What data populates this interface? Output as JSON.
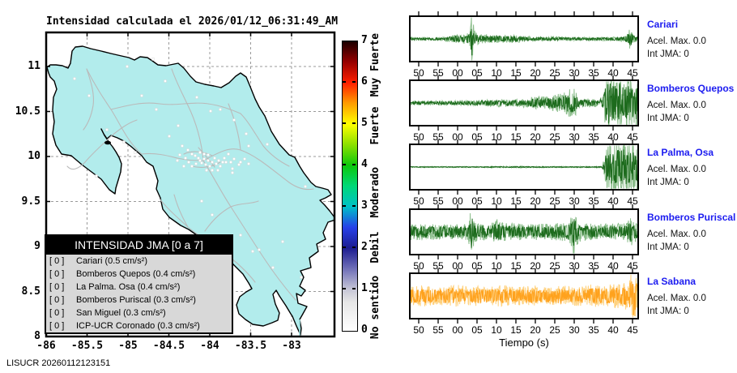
{
  "title": "Intensidad calculada el 2026/01/12_06:31:49_AM",
  "footer": "LISUCR 20260112123151",
  "map": {
    "x_ticks": [
      "-86",
      "-85.5",
      "-85",
      "-84.5",
      "-84",
      "-83.5",
      "-83"
    ],
    "y_ticks": [
      "8",
      "8.5",
      "9",
      "9.5",
      "10",
      "10.5",
      "11"
    ],
    "land_color": "#b2ecec",
    "road_color": "#bababa",
    "station_marker_color": "#ffffff",
    "grid_color": "#999999",
    "legend": {
      "header": "INTENSIDAD JMA [0 a 7]",
      "rows": [
        {
          "bracket": "[ 0 ]",
          "label": "Cariari (0.5 cm/s²)"
        },
        {
          "bracket": "[ 0 ]",
          "label": "Bomberos Quepos (0.4 cm/s²)"
        },
        {
          "bracket": "[ 0 ]",
          "label": "La Palma. Osa (0.4 cm/s²)"
        },
        {
          "bracket": "[ 0 ]",
          "label": "Bomberos Puriscal (0.3 cm/s²)"
        },
        {
          "bracket": "[ 0 ]",
          "label": "San Miguel (0.3 cm/s²)"
        },
        {
          "bracket": "[ 0 ]",
          "label": "ICP-UCR Coronado (0.3 cm/s²)"
        }
      ]
    }
  },
  "colorbar": {
    "ticks": [
      "0",
      "1",
      "2",
      "3",
      "4",
      "5",
      "6",
      "7"
    ],
    "categories": [
      {
        "label": "No sentido",
        "value": 0.55
      },
      {
        "label": "Debil",
        "value": 2.0
      },
      {
        "label": "Moderado",
        "value": 3.33
      },
      {
        "label": "Fuerte",
        "value": 4.94
      },
      {
        "label": "Muy Fuerte",
        "value": 6.41
      }
    ],
    "gradient": [
      {
        "v": 0,
        "c": "#ffffff"
      },
      {
        "v": 0.7,
        "c": "#e6e6e6"
      },
      {
        "v": 1,
        "c": "#c6c6d6"
      },
      {
        "v": 1.5,
        "c": "#7070b8"
      },
      {
        "v": 2,
        "c": "#1c1c90"
      },
      {
        "v": 2.5,
        "c": "#2740e8"
      },
      {
        "v": 3,
        "c": "#00c0c8"
      },
      {
        "v": 3.5,
        "c": "#00d878"
      },
      {
        "v": 4,
        "c": "#0cc80c"
      },
      {
        "v": 4.5,
        "c": "#8ce000"
      },
      {
        "v": 5,
        "c": "#ffff00"
      },
      {
        "v": 5.5,
        "c": "#ff9c00"
      },
      {
        "v": 6,
        "c": "#ff1e00"
      },
      {
        "v": 6.5,
        "c": "#960000"
      },
      {
        "v": 7,
        "c": "#1a0000"
      }
    ]
  },
  "seismograms": {
    "x_tick_labels": [
      "50",
      "55",
      "00",
      "05",
      "10",
      "15",
      "20",
      "25",
      "30",
      "35",
      "40",
      "45"
    ],
    "xlabel": "Tiempo (s)",
    "station_label_color": "#1c1cf0"
  },
  "chart_data": [
    {
      "type": "heatmap",
      "subtype": "intensity-map",
      "title": "Intensidad calculada el 2026/01/12_06:31:49_AM",
      "region": "Costa Rica",
      "xlabel": "",
      "ylabel": "",
      "x_ticks": [
        -86,
        -85.5,
        -85,
        -84.5,
        -84,
        -83.5,
        -83
      ],
      "y_ticks": [
        8,
        8.5,
        9,
        9.5,
        10,
        10.5,
        11
      ],
      "xlim": [
        -86,
        -82.47
      ],
      "ylim": [
        8,
        11.38
      ],
      "grid": true,
      "legend_title": "INTENSIDAD JMA [0 a 7]",
      "stations_intensity": [
        {
          "station": "Cariari",
          "jma_intensity": 0,
          "acel_max_cm_s2": 0.5
        },
        {
          "station": "Bomberos Quepos",
          "jma_intensity": 0,
          "acel_max_cm_s2": 0.4
        },
        {
          "station": "La Palma. Osa",
          "jma_intensity": 0,
          "acel_max_cm_s2": 0.4
        },
        {
          "station": "Bomberos Puriscal",
          "jma_intensity": 0,
          "acel_max_cm_s2": 0.3
        },
        {
          "station": "San Miguel",
          "jma_intensity": 0,
          "acel_max_cm_s2": 0.3
        },
        {
          "station": "ICP-UCR Coronado",
          "jma_intensity": 0,
          "acel_max_cm_s2": 0.3
        }
      ],
      "colorbar": {
        "range": [
          0,
          7
        ],
        "ticks": [
          0,
          1,
          2,
          3,
          4,
          5,
          6,
          7
        ],
        "labels": [
          "No sentido",
          "Debil",
          "Moderado",
          "Fuerte",
          "Muy Fuerte"
        ]
      }
    },
    {
      "type": "line",
      "subtype": "seismogram-waveforms",
      "xlabel": "Tiempo (s)",
      "x_tick_labels": [
        "50",
        "55",
        "00",
        "05",
        "10",
        "15",
        "20",
        "25",
        "30",
        "35",
        "40",
        "45"
      ],
      "series": [
        {
          "name": "Cariari",
          "acel_text": "Acel. Max. 0.0",
          "int_text": "Int JMA: 0",
          "acel_max": 0.0,
          "int_jma": 0,
          "color": "#1d6b1d",
          "color_light": "#8abd8a",
          "envelope": [
            [
              0,
              0.05
            ],
            [
              0.14,
              0.05
            ],
            [
              0.18,
              0.12
            ],
            [
              0.22,
              0.14
            ],
            [
              0.25,
              0.18
            ],
            [
              0.263,
              0.25
            ],
            [
              0.269,
              1.0
            ],
            [
              0.275,
              0.6
            ],
            [
              0.285,
              0.22
            ],
            [
              0.31,
              0.15
            ],
            [
              0.35,
              0.13
            ],
            [
              0.38,
              0.15
            ],
            [
              0.41,
              0.12
            ],
            [
              0.45,
              0.14
            ],
            [
              0.5,
              0.09
            ],
            [
              0.55,
              0.07
            ],
            [
              0.62,
              0.08
            ],
            [
              0.7,
              0.06
            ],
            [
              0.8,
              0.06
            ],
            [
              0.9,
              0.07
            ],
            [
              0.945,
              0.08
            ],
            [
              0.965,
              0.32
            ],
            [
              0.975,
              0.28
            ],
            [
              0.99,
              0.1
            ],
            [
              1,
              0.08
            ]
          ]
        },
        {
          "name": "Bomberos Quepos",
          "acel_text": "Acel. Max. 0.0",
          "int_text": "Int JMA: 0",
          "acel_max": 0.0,
          "int_jma": 0,
          "color": "#1d6b1d",
          "color_light": "#8abd8a",
          "envelope": [
            [
              0,
              0.06
            ],
            [
              0.1,
              0.07
            ],
            [
              0.2,
              0.08
            ],
            [
              0.3,
              0.1
            ],
            [
              0.38,
              0.13
            ],
            [
              0.45,
              0.12
            ],
            [
              0.5,
              0.15
            ],
            [
              0.55,
              0.2
            ],
            [
              0.6,
              0.22
            ],
            [
              0.64,
              0.28
            ],
            [
              0.68,
              0.35
            ],
            [
              0.71,
              0.55
            ],
            [
              0.725,
              0.45
            ],
            [
              0.74,
              0.2
            ],
            [
              0.77,
              0.16
            ],
            [
              0.8,
              0.14
            ],
            [
              0.83,
              0.12
            ],
            [
              0.85,
              0.3
            ],
            [
              0.862,
              0.95
            ],
            [
              0.88,
              1.0
            ],
            [
              0.9,
              0.8
            ],
            [
              0.92,
              0.95
            ],
            [
              0.94,
              0.75
            ],
            [
              0.96,
              0.9
            ],
            [
              0.98,
              0.7
            ],
            [
              1,
              0.8
            ]
          ]
        },
        {
          "name": "La Palma, Osa",
          "acel_text": "Acel. Max. 0.0",
          "int_text": "Int JMA: 0",
          "acel_max": 0.0,
          "int_jma": 0,
          "color": "#1d6b1d",
          "color_light": "#8abd8a",
          "envelope": [
            [
              0,
              0.018
            ],
            [
              0.3,
              0.018
            ],
            [
              0.45,
              0.025
            ],
            [
              0.6,
              0.02
            ],
            [
              0.8,
              0.02
            ],
            [
              0.845,
              0.03
            ],
            [
              0.862,
              0.6
            ],
            [
              0.875,
              1.0
            ],
            [
              0.89,
              0.75
            ],
            [
              0.91,
              0.9
            ],
            [
              0.93,
              0.8
            ],
            [
              0.95,
              0.95
            ],
            [
              0.97,
              0.7
            ],
            [
              1,
              0.85
            ]
          ]
        },
        {
          "name": "Bomberos Puriscal",
          "acel_text": "Acel. Max. 0.0",
          "int_text": "Int JMA: 0",
          "acel_max": 0.0,
          "int_jma": 0,
          "color": "#1d6b1d",
          "color_light": "#8abd8a",
          "envelope": [
            [
              0,
              0.28
            ],
            [
              0.1,
              0.26
            ],
            [
              0.2,
              0.25
            ],
            [
              0.255,
              0.3
            ],
            [
              0.268,
              0.85
            ],
            [
              0.28,
              0.4
            ],
            [
              0.3,
              0.28
            ],
            [
              0.36,
              0.3
            ],
            [
              0.385,
              0.5
            ],
            [
              0.4,
              0.3
            ],
            [
              0.5,
              0.26
            ],
            [
              0.6,
              0.27
            ],
            [
              0.68,
              0.3
            ],
            [
              0.712,
              0.5
            ],
            [
              0.72,
              1.0
            ],
            [
              0.728,
              0.5
            ],
            [
              0.75,
              0.3
            ],
            [
              0.8,
              0.27
            ],
            [
              0.85,
              0.26
            ],
            [
              0.9,
              0.28
            ],
            [
              0.95,
              0.3
            ],
            [
              0.97,
              0.5
            ],
            [
              0.985,
              0.35
            ],
            [
              1,
              0.3
            ]
          ]
        },
        {
          "name": "La Sabana",
          "acel_text": "Acel. Max. 0.0",
          "int_text": "Int JMA: 0",
          "acel_max": 0.0,
          "int_jma": 0,
          "color": "#ffa21e",
          "color_light": "#ffd27f",
          "envelope": [
            [
              0,
              0.32
            ],
            [
              0.05,
              0.36
            ],
            [
              0.1,
              0.3
            ],
            [
              0.15,
              0.34
            ],
            [
              0.2,
              0.38
            ],
            [
              0.25,
              0.3
            ],
            [
              0.3,
              0.34
            ],
            [
              0.35,
              0.3
            ],
            [
              0.4,
              0.36
            ],
            [
              0.45,
              0.3
            ],
            [
              0.5,
              0.32
            ],
            [
              0.55,
              0.34
            ],
            [
              0.6,
              0.3
            ],
            [
              0.65,
              0.36
            ],
            [
              0.7,
              0.32
            ],
            [
              0.75,
              0.34
            ],
            [
              0.8,
              0.38
            ],
            [
              0.85,
              0.34
            ],
            [
              0.9,
              0.42
            ],
            [
              0.93,
              0.38
            ],
            [
              0.96,
              0.5
            ],
            [
              0.983,
              1.0
            ],
            [
              0.99,
              0.7
            ],
            [
              1,
              0.5
            ]
          ]
        }
      ]
    }
  ]
}
